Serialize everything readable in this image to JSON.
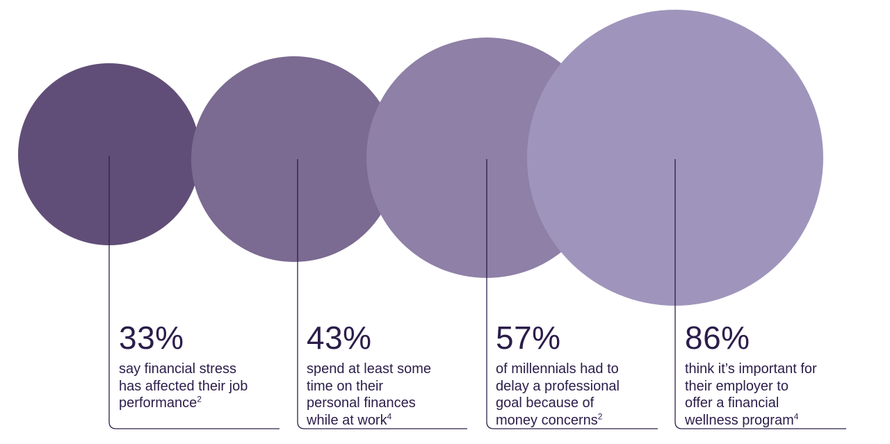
{
  "chart_data": {
    "type": "bubble",
    "colors": {
      "line": "#2b1d4a",
      "text": "#2b1d4a"
    },
    "series": [
      {
        "value": "33%",
        "percent": 33,
        "lines": [
          "say financial stress",
          "has affected their job",
          "performance"
        ],
        "footnote": "2",
        "color": "#614e78"
      },
      {
        "value": "43%",
        "percent": 43,
        "lines": [
          "spend at least some",
          "time on their",
          "personal finances",
          "while at work"
        ],
        "footnote": "4",
        "color": "#7b6a91"
      },
      {
        "value": "57%",
        "percent": 57,
        "lines": [
          "of millennials had to",
          "delay a professional",
          "goal because of",
          "money concerns"
        ],
        "footnote": "2",
        "color": "#8e80a6"
      },
      {
        "value": "86%",
        "percent": 86,
        "lines": [
          "think it’s important for",
          "their employer to",
          "offer a financial",
          "wellness program"
        ],
        "footnote": "4",
        "color": "#9f95bc"
      }
    ]
  }
}
